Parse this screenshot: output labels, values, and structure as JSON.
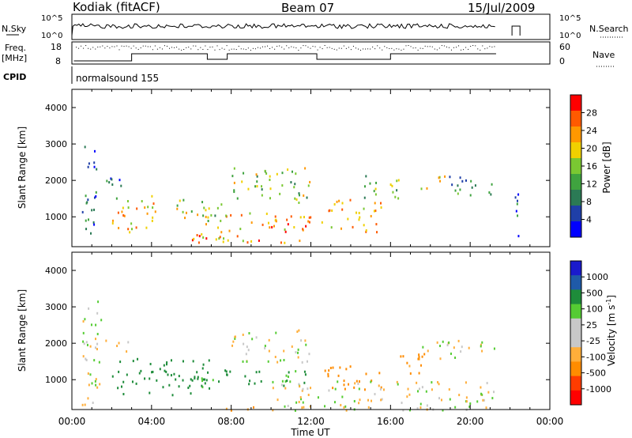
{
  "header": {
    "station": "Kodiak (fitACF)",
    "beam": "Beam 07",
    "date": "15/Jul/2009"
  },
  "status_panels": {
    "nsky_label": "N.Sky",
    "nsky_ticks": [
      "10^5",
      "10^0"
    ],
    "nsearch_label": "N.Search",
    "nsearch_ticks": [
      "10^5",
      "10^0"
    ],
    "freq_label": "Freq.",
    "freq_unit": "[MHz]",
    "freq_ticks": [
      "18",
      "8"
    ],
    "nave_label": "Nave",
    "nave_ticks": [
      "60",
      "0"
    ],
    "cpid_label": "CPID",
    "cpid_value": "normalsound 155"
  },
  "colors": {
    "power_scale": [
      "#0000ff",
      "#1f3fa8",
      "#2b7a55",
      "#3fa33f",
      "#7ac832",
      "#f0d000",
      "#ff9800",
      "#ff5a00",
      "#ff0000"
    ],
    "velocity_scale": [
      "#ff0000",
      "#ff3c00",
      "#ff8c00",
      "#ffae3a",
      "#c8c8c8",
      "#c8c8c8",
      "#55cc33",
      "#1e8c3a",
      "#1f5aa8",
      "#1a1acc"
    ],
    "ground_scatter": "#bfbfbf"
  },
  "chart_data": [
    {
      "type": "heatmap",
      "name": "power",
      "xlabel": "",
      "ylabel": "Slant Range [km]",
      "x_range_hours": [
        0,
        24
      ],
      "ylim": [
        180,
        4500
      ],
      "y_ticks": [
        "4000",
        "3000",
        "2000",
        "1000"
      ],
      "x_ticks": [
        "00:00",
        "04:00",
        "08:00",
        "12:00",
        "16:00",
        "20:00",
        "00:00"
      ],
      "colorbar_label": "Power [dB]",
      "colorbar_ticks": [
        "28",
        "24",
        "20",
        "16",
        "12",
        "8",
        "4"
      ],
      "data_gaps_hours": [
        [
          21.3,
          22.1
        ],
        [
          22.6,
          23.9
        ]
      ],
      "echo_regions": [
        {
          "t": [
            0.5,
            1.2
          ],
          "range": [
            300,
            3300
          ],
          "power_db": 8
        },
        {
          "t": [
            1.0,
            2.5
          ],
          "range": [
            1800,
            2200
          ],
          "power_db": 10
        },
        {
          "t": [
            2.0,
            4.5
          ],
          "range": [
            600,
            1600
          ],
          "power_db": 22
        },
        {
          "t": [
            4.5,
            7.5
          ],
          "range": [
            900,
            1500
          ],
          "power_db": 18
        },
        {
          "t": [
            6.0,
            12.0
          ],
          "range": [
            300,
            1200
          ],
          "power_db": 26
        },
        {
          "t": [
            8.0,
            12.0
          ],
          "range": [
            1400,
            2400
          ],
          "power_db": 18
        },
        {
          "t": [
            12.5,
            15.5
          ],
          "range": [
            600,
            1500
          ],
          "power_db": 24
        },
        {
          "t": [
            14.5,
            16.5
          ],
          "range": [
            1500,
            2200
          ],
          "power_db": 16
        },
        {
          "t": [
            17.5,
            18.8
          ],
          "range": [
            1800,
            2200
          ],
          "power_db": 20
        },
        {
          "t": [
            18.8,
            21.2
          ],
          "range": [
            1600,
            2200
          ],
          "power_db": 14
        },
        {
          "t": [
            22.1,
            22.5
          ],
          "range": [
            300,
            1800
          ],
          "power_db": 10
        }
      ]
    },
    {
      "type": "heatmap",
      "name": "velocity",
      "xlabel": "Time UT",
      "ylabel": "Slant Range [km]",
      "x_range_hours": [
        0,
        24
      ],
      "ylim": [
        180,
        4500
      ],
      "y_ticks": [
        "4000",
        "3000",
        "2000",
        "1000"
      ],
      "x_ticks": [
        "00:00",
        "04:00",
        "08:00",
        "12:00",
        "16:00",
        "20:00",
        "00:00"
      ],
      "colorbar_label": "Velocity [m s^-1]",
      "colorbar_ticks": [
        "1000",
        "500",
        "100",
        "25",
        "-25",
        "-100",
        "-500",
        "-1000"
      ],
      "data_gaps_hours": [
        [
          21.3,
          22.1
        ],
        [
          22.6,
          23.9
        ]
      ],
      "echo_regions": [
        {
          "t": [
            0.5,
            1.5
          ],
          "range": [
            300,
            3300
          ],
          "velocity": 0
        },
        {
          "t": [
            1.0,
            3.0
          ],
          "range": [
            1800,
            2200
          ],
          "velocity": 0
        },
        {
          "t": [
            2.0,
            7.0
          ],
          "range": [
            600,
            1600
          ],
          "velocity": 200
        },
        {
          "t": [
            6.0,
            12.0
          ],
          "range": [
            800,
            1300
          ],
          "velocity": 150
        },
        {
          "t": [
            7.0,
            10.0
          ],
          "range": [
            180,
            300
          ],
          "velocity": -150
        },
        {
          "t": [
            8.0,
            12.0
          ],
          "range": [
            1500,
            2400
          ],
          "velocity": 0
        },
        {
          "t": [
            12.5,
            15.5
          ],
          "range": [
            700,
            1400
          ],
          "velocity": -200
        },
        {
          "t": [
            16.0,
            18.0
          ],
          "range": [
            1200,
            1800
          ],
          "velocity": -150
        },
        {
          "t": [
            17.5,
            21.2
          ],
          "range": [
            1600,
            2100
          ],
          "velocity": 0
        },
        {
          "t": [
            10.0,
            21.2
          ],
          "range": [
            180,
            1000
          ],
          "velocity": 0
        }
      ]
    }
  ]
}
